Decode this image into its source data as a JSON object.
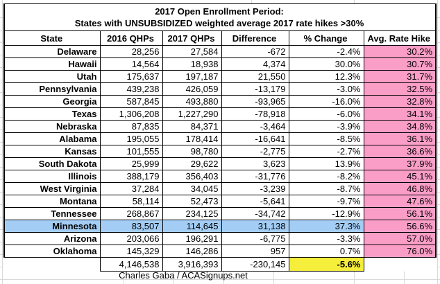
{
  "chart_data": {
    "type": "table",
    "title": "2017 Open Enrollment Period:",
    "subtitle": "States with UNSUBSIDIZED weighted average 2017 rate hikes >30%",
    "columns": [
      "State",
      "2016 QHPs",
      "2017 QHPs",
      "Difference",
      "% Change",
      "Avg. Rate Hike"
    ],
    "rows": [
      [
        "Delaware",
        "28,256",
        "27,584",
        "-672",
        "-2.4%",
        "30.2%"
      ],
      [
        "Hawaii",
        "14,564",
        "18,938",
        "4,374",
        "30.0%",
        "30.7%"
      ],
      [
        "Utah",
        "175,637",
        "197,187",
        "21,550",
        "12.3%",
        "31.7%"
      ],
      [
        "Pennsylvania",
        "439,238",
        "426,059",
        "-13,179",
        "-3.0%",
        "32.5%"
      ],
      [
        "Georgia",
        "587,845",
        "493,880",
        "-93,965",
        "-16.0%",
        "32.8%"
      ],
      [
        "Texas",
        "1,306,208",
        "1,227,290",
        "-78,918",
        "-6.0%",
        "34.1%"
      ],
      [
        "Nebraska",
        "87,835",
        "84,371",
        "-3,464",
        "-3.9%",
        "34.8%"
      ],
      [
        "Alabama",
        "195,055",
        "178,414",
        "-16,641",
        "-8.5%",
        "36.1%"
      ],
      [
        "Kansas",
        "101,555",
        "98,780",
        "-2,775",
        "-2.7%",
        "36.6%"
      ],
      [
        "South Dakota",
        "25,999",
        "29,622",
        "3,623",
        "13.9%",
        "37.9%"
      ],
      [
        "Illinois",
        "388,179",
        "356,403",
        "-31,776",
        "-8.2%",
        "45.1%"
      ],
      [
        "West Virginia",
        "37,284",
        "34,045",
        "-3,239",
        "-8.7%",
        "46.8%"
      ],
      [
        "Montana",
        "58,114",
        "52,473",
        "-5,641",
        "-9.7%",
        "47.6%"
      ],
      [
        "Tennessee",
        "268,867",
        "234,125",
        "-34,742",
        "-12.9%",
        "56.1%"
      ],
      [
        "Minnesota",
        "83,507",
        "114,645",
        "31,138",
        "37.3%",
        "56.6%"
      ],
      [
        "Arizona",
        "203,066",
        "196,291",
        "-6,775",
        "-3.3%",
        "57.0%"
      ],
      [
        "Oklahoma",
        "145,329",
        "146,286",
        "957",
        "0.7%",
        "76.0%"
      ]
    ],
    "highlighted_row": "Minnesota",
    "totals": [
      "",
      "4,146,538",
      "3,916,393",
      "-230,145",
      "-5.6%",
      ""
    ],
    "credit": "Charles Gaba / ACASignups.net"
  },
  "colors": {
    "rate-hike-bg": "#FA9EC8",
    "highlight-row-bg": "#A3CDF5",
    "total-pct-bg": "#F5EE3A"
  }
}
